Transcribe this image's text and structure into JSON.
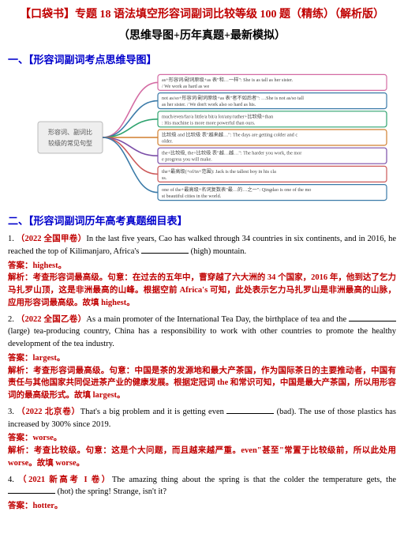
{
  "header": {
    "main_title": "【口袋书】专题 18 语法填空形容词副词比较等级 100 题（精练）（解析版）",
    "sub_title": "（思维导图+历年真题+最新模拟）"
  },
  "sections": {
    "mindmap_title": "一、【形容词副词考点思维导图】",
    "questions_title": "二、【形容词副词历年高考真题细目表】"
  },
  "mindmap": {
    "center_label_l1": "形容词、副词比",
    "center_label_l2": "较级的常见句型",
    "center_bg": "#eeeeee",
    "branches": [
      {
        "color": "#d46ba3",
        "text": "as+形容词/副词原级+as 表\"和…一样\": She is as tall as her sister. / We work as hard as we"
      },
      {
        "color": "#3a7aa8",
        "text": "not as/so+形容词/副词原级+as 表\"者不如后者\": …She is not as/so tall as her sister. / We don't work also so hard as his."
      },
      {
        "color": "#2fa36f",
        "text": "much/even/far/a little/a bit/a lot/any/rather+比较级+than: His machine is more more powerful than ours."
      },
      {
        "color": "#d07f2f",
        "text": "比较级 and 比较级 表\"越来越…\": The days are getting colder and colder."
      },
      {
        "color": "#7b4ea8",
        "text": "the+比较级, the+比较级 表\"越…越…\": The harder you work, the more progress you will make."
      },
      {
        "color": "#cc5858",
        "text": "the+最高级(+of/in+范围): Jack is the tallest boy in his class."
      },
      {
        "color": "#3a7aa8",
        "text": "one of the+最高级+名词复数表\"最…的…之一\": Qingdao is one of the most beautiful cities in the world."
      }
    ]
  },
  "questions": [
    {
      "num": "1.",
      "source": "（2022 全国甲卷）",
      "text_before": "In the last five years, Cao has walked through 34 countries in six continents, and in 2016, he reached the top of Kilimanjaro, Africa's ",
      "text_after": " (high) mountain.",
      "answer_label": "答案：",
      "answer": "highest。",
      "explain_label": "解析：",
      "explain": "考查形容词最高级。句意：在过去的五年中，曹穿越了六大洲的 34 个国家，2016 年，他到达了乞力马扎罗山顶，这是非洲最高的山峰。根据空前 Africa's 可知，此处表示乞力马扎罗山是非洲最高的山脉，应用形容词最高级。故填 highest。"
    },
    {
      "num": "2.",
      "source": "（2022 全国乙卷）",
      "text_before": "As a main promoter of the International Tea Day, the birthplace of tea and the ",
      "text_after": " (large) tea-producing country, China has a responsibility to work with other countries to promote the healthy development of the tea industry.",
      "answer_label": "答案：",
      "answer": "largest。",
      "explain_label": "解析：",
      "explain": "考查形容词最高级。句意：中国是茶的发源地和最大产茶国，作为国际茶日的主要推动者，中国有责任与其他国家共同促进茶产业的健康发展。根据定冠词 the 和常识可知，中国是最大产茶国，所以用形容词的最高级形式。故填 largest。"
    },
    {
      "num": "3.",
      "source": "（2022 北京卷）",
      "text_before": "That's a big problem and it is getting even ",
      "text_after": " (bad). The use of those plastics has increased by 300% since 2019.",
      "answer_label": "答案：",
      "answer": "worse。",
      "explain_label": "解析：",
      "explain": "考查比较级。句意：这是个大问题，而且越来越严重。even\"甚至\"常置于比较级前，所以此处用 worse。故填 worse。"
    },
    {
      "num": "4.",
      "source": "（2021 新高考 I 卷）",
      "text_before": "The amazing thing about the spring is that the colder the temperature gets, the ",
      "text_after": " (hot) the spring! Strange, isn't it?",
      "answer_label": "答案：",
      "answer": "hotter。",
      "explain_label": "",
      "explain": ""
    }
  ]
}
